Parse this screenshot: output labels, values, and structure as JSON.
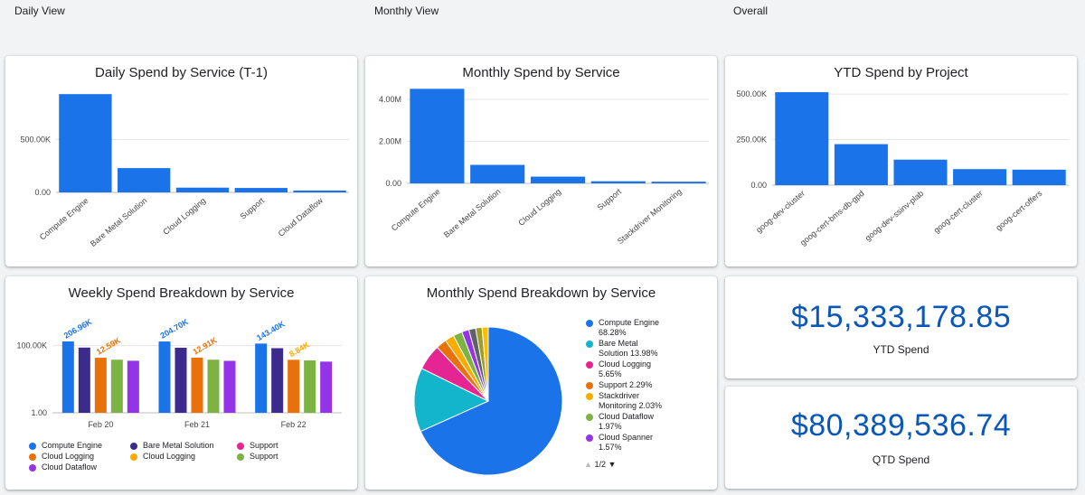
{
  "sections": {
    "daily": "Daily View",
    "monthly": "Monthly View",
    "overall": "Overall"
  },
  "colors": {
    "blue": "#1a73e8",
    "teal": "#12b5cb",
    "pink": "#e52592",
    "orange": "#e8710a",
    "yellow": "#f9ab00",
    "green": "#7cb342",
    "purple": "#9334e6",
    "navy": "#3c2a8c",
    "kpi": "#0b57b8"
  },
  "chart_data": [
    {
      "id": "daily",
      "type": "bar",
      "title": "Daily Spend by Service (T-1)",
      "categories": [
        "Compute Engine",
        "Bare Metal Solution",
        "Cloud Logging",
        "Support",
        "Cloud Dataflow"
      ],
      "values": [
        930000,
        230000,
        45000,
        42000,
        18000
      ],
      "yticks": [
        "0.00",
        "500.00K"
      ],
      "ytick_values": [
        0,
        500000
      ],
      "ylim": [
        0,
        1000000
      ]
    },
    {
      "id": "monthly",
      "type": "bar",
      "title": "Monthly Spend by Service",
      "categories": [
        "Compute Engine",
        "Bare Metal Solution",
        "Cloud Logging",
        "Support",
        "Stackdriver Monitoring"
      ],
      "values": [
        4500000,
        880000,
        320000,
        100000,
        80000
      ],
      "yticks": [
        "0.00",
        "2.00M",
        "4.00M"
      ],
      "ytick_values": [
        0,
        2000000,
        4000000
      ],
      "ylim": [
        0,
        4600000
      ]
    },
    {
      "id": "ytd",
      "type": "bar",
      "title": "YTD Spend by Project",
      "categories": [
        "goog-dev-cluster",
        "goog-cert-bms-db-gpd",
        "goog-dev-ssinv-plab",
        "goog-cert-cluster",
        "goog-cert-offers"
      ],
      "values": [
        510000,
        225000,
        140000,
        88000,
        85000
      ],
      "yticks": [
        "0.00",
        "250.00K",
        "500.00K"
      ],
      "ytick_values": [
        0,
        250000,
        500000
      ],
      "ylim": [
        0,
        540000
      ]
    },
    {
      "id": "weekly",
      "type": "bar",
      "scale": "log",
      "title": "Weekly Spend Breakdown by Service",
      "categories": [
        "Feb 20",
        "Feb 21",
        "Feb 22"
      ],
      "yticks": [
        "1.00",
        "100.00K"
      ],
      "ytick_values": [
        1,
        100000
      ],
      "ylim": [
        1,
        40000000
      ],
      "series": [
        {
          "name": "Compute Engine",
          "color": "#1a73e8",
          "values": [
            206960,
            204700,
            143400
          ]
        },
        {
          "name": "Bare Metal Solution",
          "color": "#3c2a8c",
          "values": [
            72000,
            70000,
            65000
          ]
        },
        {
          "name": "Cloud Logging",
          "color": "#e8710a",
          "values": [
            12590,
            12910,
            8840
          ]
        },
        {
          "name": "Support",
          "color": "#7cb342",
          "values": [
            9000,
            9000,
            8000
          ]
        },
        {
          "name": "Cloud Dataflow",
          "color": "#9334e6",
          "values": [
            7500,
            7400,
            6500
          ]
        }
      ],
      "data_labels": [
        {
          "text": "206.96K",
          "category": 0,
          "series": 0,
          "color": "#1a73e8"
        },
        {
          "text": "12.59K",
          "category": 0,
          "series": 2,
          "color": "#e8710a"
        },
        {
          "text": "204.70K",
          "category": 1,
          "series": 0,
          "color": "#1a73e8"
        },
        {
          "text": "12.91K",
          "category": 1,
          "series": 2,
          "color": "#e8710a"
        },
        {
          "text": "143.40K",
          "category": 2,
          "series": 0,
          "color": "#1a73e8"
        },
        {
          "text": "8.84K",
          "category": 2,
          "series": 2,
          "color": "#f9ab00"
        }
      ],
      "legend": [
        {
          "label": "Compute Engine",
          "color": "#1a73e8"
        },
        {
          "label": "Bare Metal Solution",
          "color": "#3c2a8c"
        },
        {
          "label": "Support",
          "color": "#e52592"
        },
        {
          "label": "Cloud Logging",
          "color": "#e8710a"
        },
        {
          "label": "Cloud Logging",
          "color": "#f9ab00"
        },
        {
          "label": "Support",
          "color": "#7cb342"
        },
        {
          "label": "Cloud Dataflow",
          "color": "#9334e6"
        }
      ]
    },
    {
      "id": "breakdown",
      "type": "pie",
      "title": "Monthly Spend Breakdown by Service",
      "slices": [
        {
          "label": "Compute Engine",
          "value": 68.28,
          "color": "#1a73e8"
        },
        {
          "label": "Bare Metal Solution",
          "value": 13.98,
          "color": "#12b5cb"
        },
        {
          "label": "Cloud Logging",
          "value": 5.65,
          "color": "#e52592"
        },
        {
          "label": "Support",
          "value": 2.29,
          "color": "#e8710a"
        },
        {
          "label": "Stackdriver Monitoring",
          "value": 2.03,
          "color": "#f9ab00"
        },
        {
          "label": "Cloud Dataflow",
          "value": 1.97,
          "color": "#7cb342"
        },
        {
          "label": "Cloud Spanner",
          "value": 1.57,
          "color": "#9334e6"
        },
        {
          "label": "",
          "value": 1.5,
          "color": "#5f6368"
        },
        {
          "label": "",
          "value": 1.4,
          "color": "#9e9d24"
        },
        {
          "label": "",
          "value": 1.33,
          "color": "#fbbc04"
        }
      ],
      "legend_lines": [
        {
          "color": "#1a73e8",
          "lines": [
            "Compute Engine",
            "68.28%"
          ]
        },
        {
          "color": "#12b5cb",
          "lines": [
            "Bare Metal",
            "Solution 13.98%"
          ]
        },
        {
          "color": "#e52592",
          "lines": [
            "Cloud Logging",
            "5.65%"
          ]
        },
        {
          "color": "#e8710a",
          "lines": [
            "Support 2.29%"
          ]
        },
        {
          "color": "#f9ab00",
          "lines": [
            "Stackdriver",
            "Monitoring 2.03%"
          ]
        },
        {
          "color": "#7cb342",
          "lines": [
            "Cloud Dataflow",
            "1.97%"
          ]
        },
        {
          "color": "#9334e6",
          "lines": [
            "Cloud Spanner",
            "1.57%"
          ]
        }
      ],
      "pager": "1/2"
    }
  ],
  "kpis": [
    {
      "value": "$15,333,178.85",
      "label": "YTD Spend"
    },
    {
      "value": "$80,389,536.74",
      "label": "QTD Spend"
    }
  ]
}
